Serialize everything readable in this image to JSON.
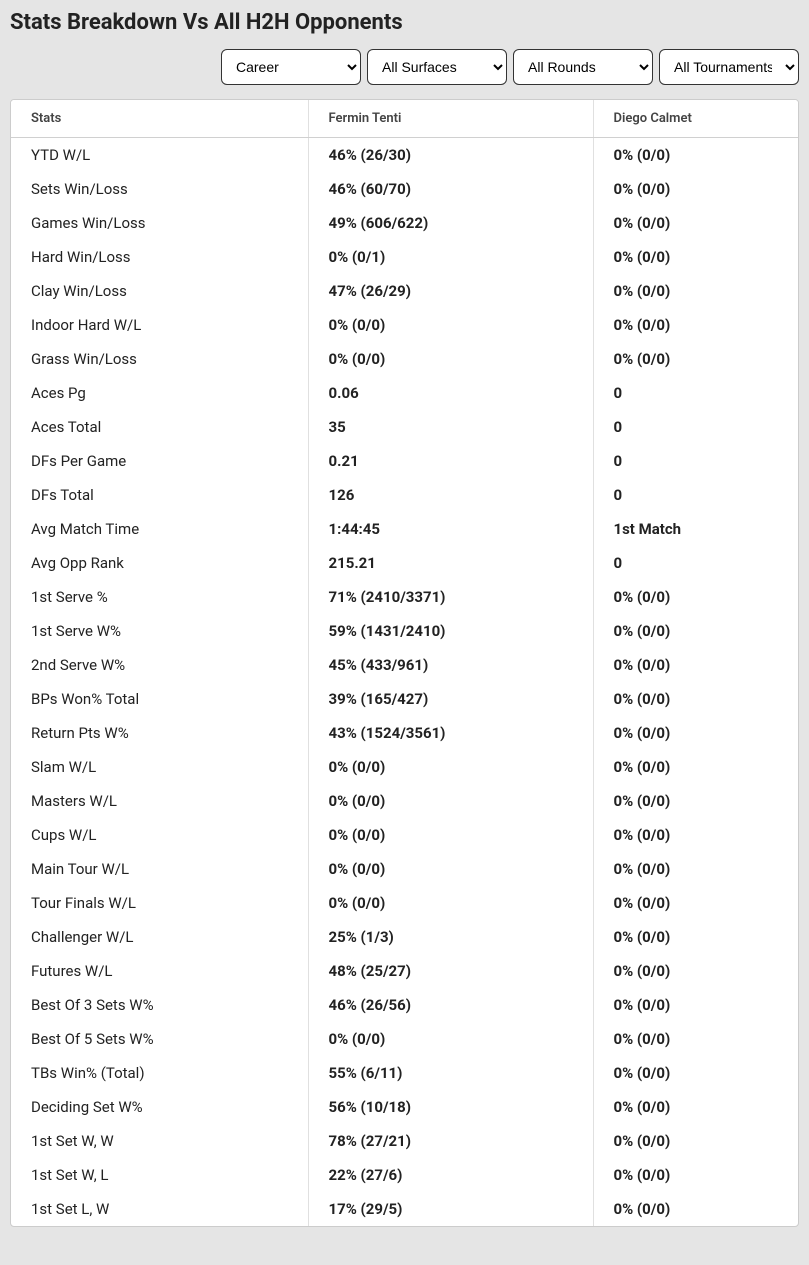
{
  "title": "Stats Breakdown Vs All H2H Opponents",
  "filters": {
    "period": "Career",
    "surface": "All Surfaces",
    "round": "All Rounds",
    "tournament": "All Tournaments"
  },
  "table": {
    "headers": [
      "Stats",
      "Fermin Tenti",
      "Diego Calmet"
    ],
    "rows": [
      [
        "YTD W/L",
        "46% (26/30)",
        "0% (0/0)"
      ],
      [
        "Sets Win/Loss",
        "46% (60/70)",
        "0% (0/0)"
      ],
      [
        "Games Win/Loss",
        "49% (606/622)",
        "0% (0/0)"
      ],
      [
        "Hard Win/Loss",
        "0% (0/1)",
        "0% (0/0)"
      ],
      [
        "Clay Win/Loss",
        "47% (26/29)",
        "0% (0/0)"
      ],
      [
        "Indoor Hard W/L",
        "0% (0/0)",
        "0% (0/0)"
      ],
      [
        "Grass Win/Loss",
        "0% (0/0)",
        "0% (0/0)"
      ],
      [
        "Aces Pg",
        "0.06",
        "0"
      ],
      [
        "Aces Total",
        "35",
        "0"
      ],
      [
        "DFs Per Game",
        "0.21",
        "0"
      ],
      [
        "DFs Total",
        "126",
        "0"
      ],
      [
        "Avg Match Time",
        "1:44:45",
        "1st Match"
      ],
      [
        "Avg Opp Rank",
        "215.21",
        "0"
      ],
      [
        "1st Serve %",
        "71% (2410/3371)",
        "0% (0/0)"
      ],
      [
        "1st Serve W%",
        "59% (1431/2410)",
        "0% (0/0)"
      ],
      [
        "2nd Serve W%",
        "45% (433/961)",
        "0% (0/0)"
      ],
      [
        "BPs Won% Total",
        "39% (165/427)",
        "0% (0/0)"
      ],
      [
        "Return Pts W%",
        "43% (1524/3561)",
        "0% (0/0)"
      ],
      [
        "Slam W/L",
        "0% (0/0)",
        "0% (0/0)"
      ],
      [
        "Masters W/L",
        "0% (0/0)",
        "0% (0/0)"
      ],
      [
        "Cups W/L",
        "0% (0/0)",
        "0% (0/0)"
      ],
      [
        "Main Tour W/L",
        "0% (0/0)",
        "0% (0/0)"
      ],
      [
        "Tour Finals W/L",
        "0% (0/0)",
        "0% (0/0)"
      ],
      [
        "Challenger W/L",
        "25% (1/3)",
        "0% (0/0)"
      ],
      [
        "Futures W/L",
        "48% (25/27)",
        "0% (0/0)"
      ],
      [
        "Best Of 3 Sets W%",
        "46% (26/56)",
        "0% (0/0)"
      ],
      [
        "Best Of 5 Sets W%",
        "0% (0/0)",
        "0% (0/0)"
      ],
      [
        "TBs Win% (Total)",
        "55% (6/11)",
        "0% (0/0)"
      ],
      [
        "Deciding Set W%",
        "56% (10/18)",
        "0% (0/0)"
      ],
      [
        "1st Set W, W",
        "78% (27/21)",
        "0% (0/0)"
      ],
      [
        "1st Set W, L",
        "22% (27/6)",
        "0% (0/0)"
      ],
      [
        "1st Set L, W",
        "17% (29/5)",
        "0% (0/0)"
      ]
    ]
  }
}
